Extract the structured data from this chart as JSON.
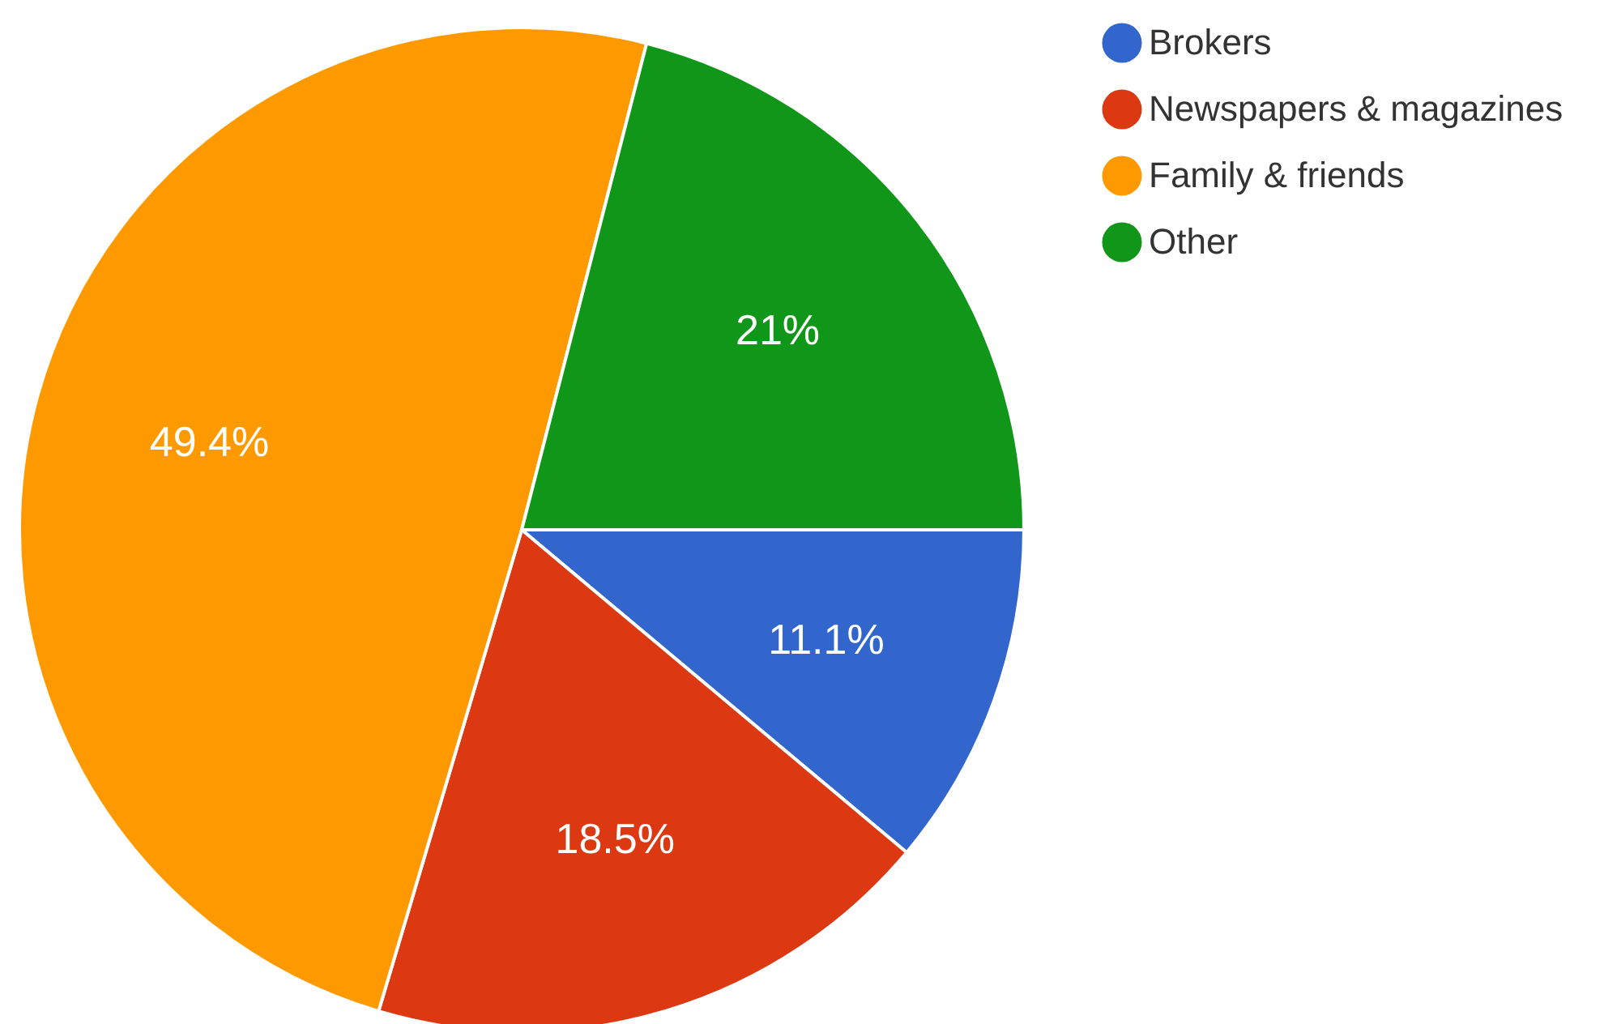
{
  "chart_data": {
    "type": "pie",
    "categories": [
      "Brokers",
      "Newspapers & magazines",
      "Family & friends",
      "Other"
    ],
    "values": [
      11.1,
      18.5,
      49.4,
      21
    ],
    "colors": [
      "#3366cc",
      "#dc3912",
      "#ff9900",
      "#109618"
    ],
    "value_labels": [
      "11.1%",
      "18.5%",
      "49.4%",
      "21%"
    ],
    "legend": "top right"
  }
}
